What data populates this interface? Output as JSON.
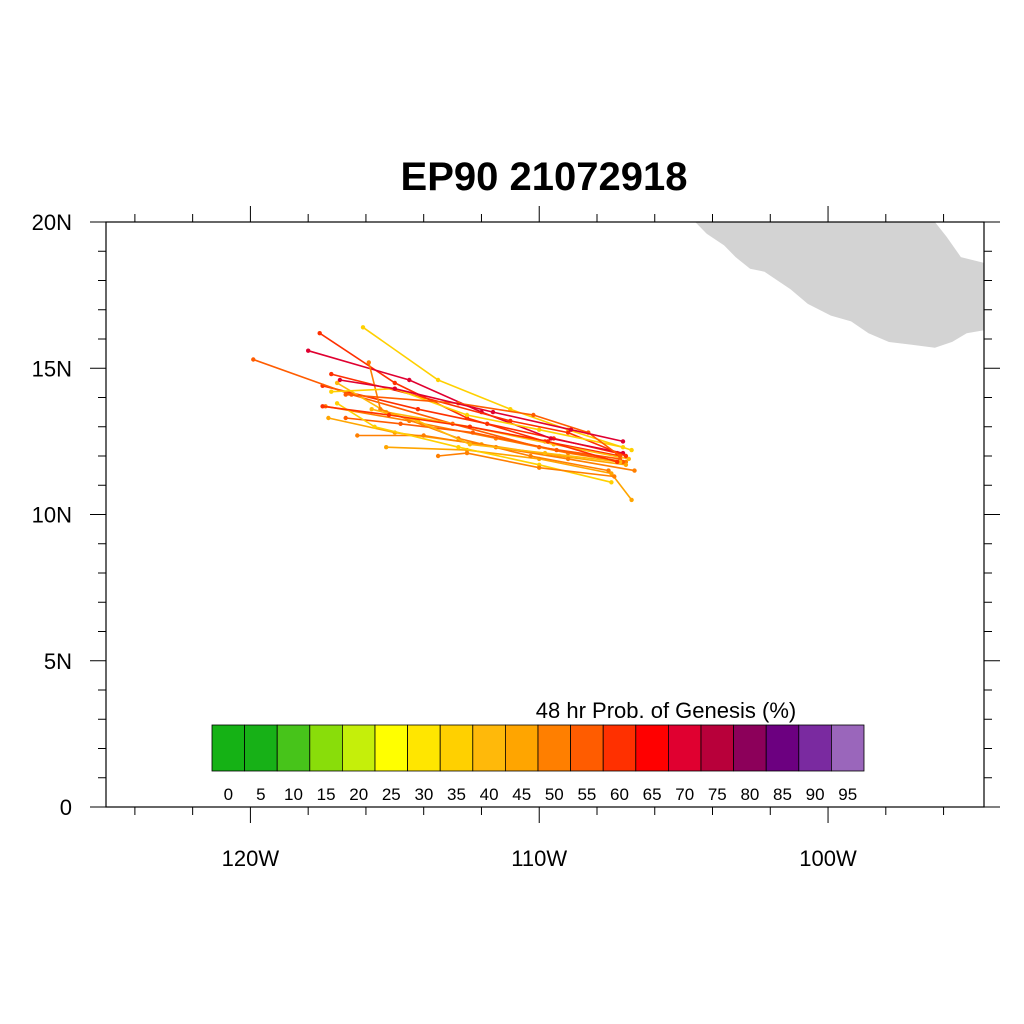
{
  "title": "EP90 21072918",
  "map": {
    "lon_range": [
      -125,
      -94.6
    ],
    "lat_range": [
      0,
      20
    ],
    "lat_ticks": [
      {
        "value": 20,
        "label": "20N"
      },
      {
        "value": 15,
        "label": "15N"
      },
      {
        "value": 10,
        "label": "10N"
      },
      {
        "value": 5,
        "label": "5N"
      },
      {
        "value": 0,
        "label": "0"
      }
    ],
    "lon_ticks": [
      {
        "value": -120,
        "label": "120W"
      },
      {
        "value": -110,
        "label": "110W"
      },
      {
        "value": -100,
        "label": "100W"
      }
    ],
    "land_color": "#d3d3d3",
    "land_outline": [
      [
        -104.6,
        20
      ],
      [
        -104.2,
        19.6
      ],
      [
        -103.6,
        19.2
      ],
      [
        -103.2,
        18.8
      ],
      [
        -102.7,
        18.4
      ],
      [
        -102.2,
        18.3
      ],
      [
        -101.9,
        18.1
      ],
      [
        -101.3,
        17.7
      ],
      [
        -100.7,
        17.2
      ],
      [
        -99.9,
        16.8
      ],
      [
        -99.2,
        16.6
      ],
      [
        -98.6,
        16.2
      ],
      [
        -97.9,
        15.9
      ],
      [
        -97.1,
        15.8
      ],
      [
        -96.3,
        15.7
      ],
      [
        -95.7,
        15.9
      ],
      [
        -95.2,
        16.2
      ],
      [
        -94.6,
        16.3
      ],
      [
        -94.6,
        18.6
      ],
      [
        -95.4,
        18.8
      ],
      [
        -95.9,
        19.5
      ],
      [
        -96.3,
        20
      ]
    ]
  },
  "colorbar": {
    "title": "48 hr Prob. of Genesis (%)",
    "labels": [
      "0",
      "5",
      "10",
      "15",
      "20",
      "25",
      "30",
      "35",
      "40",
      "45",
      "50",
      "55",
      "60",
      "65",
      "70",
      "75",
      "80",
      "85",
      "90",
      "95"
    ],
    "colors": [
      "#15b215",
      "#17b117",
      "#47c41a",
      "#89dd0a",
      "#c5ef0a",
      "#ffff00",
      "#ffe600",
      "#ffd000",
      "#ffb90a",
      "#ffa500",
      "#ff7f00",
      "#ff5c00",
      "#ff3000",
      "#ff0000",
      "#e00030",
      "#b8003a",
      "#8c005a",
      "#6c0080",
      "#7a2aa0",
      "#9a66bb"
    ]
  },
  "chart_data": {
    "type": "line",
    "title": "EP90 21072918",
    "xlabel": "",
    "ylabel": "",
    "xlim": [
      -125,
      -94.6
    ],
    "ylim": [
      0,
      20
    ],
    "series": [
      {
        "color": "#ff3000",
        "points": [
          [
            -107.3,
            12.1
          ],
          [
            -109.5,
            12.6
          ],
          [
            -111.8,
            13.1
          ],
          [
            -114.2,
            13.6
          ],
          [
            -117.5,
            14.4
          ]
        ]
      },
      {
        "color": "#ff3000",
        "points": [
          [
            -107.2,
            12.0
          ],
          [
            -109.8,
            12.5
          ],
          [
            -112.5,
            13.3
          ],
          [
            -115.0,
            14.5
          ],
          [
            -117.6,
            16.2
          ]
        ]
      },
      {
        "color": "#e00030",
        "points": [
          [
            -107.1,
            12.1
          ],
          [
            -109.6,
            12.6
          ],
          [
            -112.0,
            13.5
          ],
          [
            -114.5,
            14.6
          ],
          [
            -118.0,
            15.6
          ]
        ]
      },
      {
        "color": "#ff5c00",
        "points": [
          [
            -107.2,
            11.9
          ],
          [
            -110.0,
            12.3
          ],
          [
            -113.0,
            13.1
          ],
          [
            -116.5,
            14.1
          ],
          [
            -119.9,
            15.3
          ]
        ]
      },
      {
        "color": "#ff7f00",
        "points": [
          [
            -107.0,
            11.8
          ],
          [
            -109.0,
            12.1
          ],
          [
            -111.5,
            12.6
          ],
          [
            -114.5,
            13.2
          ],
          [
            -117.4,
            13.7
          ]
        ]
      },
      {
        "color": "#ffd000",
        "points": [
          [
            -106.8,
            12.2
          ],
          [
            -109.0,
            12.9
          ],
          [
            -111.0,
            13.6
          ],
          [
            -113.5,
            14.6
          ],
          [
            -116.1,
            16.4
          ]
        ]
      },
      {
        "color": "#ffa500",
        "points": [
          [
            -107.0,
            11.7
          ],
          [
            -109.3,
            12.0
          ],
          [
            -112.0,
            12.4
          ],
          [
            -115.0,
            12.8
          ],
          [
            -117.3,
            13.3
          ]
        ]
      },
      {
        "color": "#ffb90a",
        "points": [
          [
            -106.9,
            11.9
          ],
          [
            -109.5,
            12.4
          ],
          [
            -112.4,
            13.0
          ],
          [
            -115.3,
            13.5
          ],
          [
            -117.0,
            14.5
          ]
        ]
      },
      {
        "color": "#ff5c00",
        "points": [
          [
            -107.1,
            11.8
          ],
          [
            -109.4,
            12.2
          ],
          [
            -112.3,
            12.8
          ],
          [
            -114.8,
            13.1
          ],
          [
            -116.7,
            13.3
          ]
        ]
      },
      {
        "color": "#ff7f00",
        "points": [
          [
            -106.7,
            11.5
          ],
          [
            -109.0,
            11.9
          ],
          [
            -111.5,
            12.3
          ],
          [
            -114.0,
            12.7
          ],
          [
            -116.3,
            12.7
          ]
        ]
      },
      {
        "color": "#ffa500",
        "points": [
          [
            -106.8,
            10.5
          ],
          [
            -107.5,
            11.4
          ],
          [
            -110.0,
            11.9
          ],
          [
            -112.5,
            12.2
          ],
          [
            -115.3,
            12.3
          ]
        ]
      },
      {
        "color": "#ffd000",
        "points": [
          [
            -107.5,
            11.1
          ],
          [
            -110.0,
            11.7
          ],
          [
            -112.8,
            12.3
          ],
          [
            -115.7,
            13.0
          ],
          [
            -117.0,
            13.8
          ]
        ]
      },
      {
        "color": "#ff3000",
        "points": [
          [
            -107.0,
            12.0
          ],
          [
            -109.0,
            12.8
          ],
          [
            -111.0,
            13.2
          ],
          [
            -114.0,
            14.0
          ],
          [
            -117.2,
            14.8
          ]
        ]
      },
      {
        "color": "#ff7f00",
        "points": [
          [
            -107.6,
            11.5
          ],
          [
            -110.3,
            12.0
          ],
          [
            -112.8,
            12.6
          ],
          [
            -115.5,
            13.6
          ],
          [
            -115.9,
            15.2
          ]
        ]
      },
      {
        "color": "#ffd000",
        "points": [
          [
            -107.1,
            12.3
          ],
          [
            -110.0,
            12.9
          ],
          [
            -112.5,
            13.4
          ],
          [
            -115.0,
            14.3
          ],
          [
            -117.2,
            14.2
          ]
        ]
      },
      {
        "color": "#ff7f00",
        "points": [
          [
            -107.4,
            11.3
          ],
          [
            -110.0,
            11.6
          ],
          [
            -112.5,
            12.1
          ],
          [
            -113.5,
            12.0
          ]
        ]
      },
      {
        "color": "#ff5c00",
        "points": [
          [
            -107.2,
            12.0
          ],
          [
            -108.3,
            12.8
          ],
          [
            -110.2,
            13.4
          ],
          [
            -112.8,
            13.8
          ],
          [
            -116.7,
            14.1
          ]
        ]
      },
      {
        "color": "#ffb90a",
        "points": [
          [
            -107.2,
            11.8
          ],
          [
            -109.8,
            12.1
          ],
          [
            -112.4,
            12.4
          ],
          [
            -114.2,
            13.2
          ],
          [
            -115.8,
            13.6
          ]
        ]
      },
      {
        "color": "#ff3000",
        "points": [
          [
            -107.3,
            11.8
          ],
          [
            -109.7,
            12.5
          ],
          [
            -112.4,
            13.0
          ],
          [
            -115.2,
            13.4
          ],
          [
            -117.5,
            13.7
          ]
        ]
      },
      {
        "color": "#e00030",
        "points": [
          [
            -107.1,
            12.5
          ],
          [
            -108.9,
            12.9
          ],
          [
            -111.6,
            13.5
          ],
          [
            -115.0,
            14.3
          ],
          [
            -116.9,
            14.6
          ]
        ]
      }
    ]
  }
}
